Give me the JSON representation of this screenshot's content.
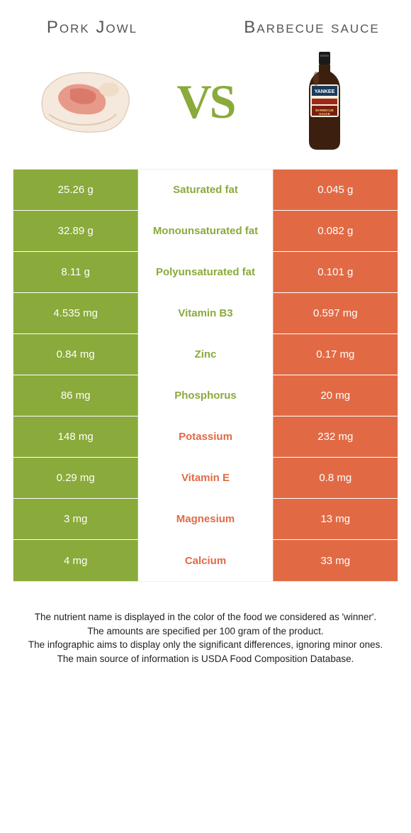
{
  "header": {
    "left_title": "Pork Jowl",
    "right_title": "Barbecue sauce",
    "vs_label": "VS"
  },
  "colors": {
    "left_color": "#8aaa3b",
    "right_color": "#e16a45",
    "left_text": "#8aaa3b",
    "right_text": "#e16a45",
    "body_bg": "#ffffff"
  },
  "rows": [
    {
      "left": "25.26 g",
      "label": "Saturated fat",
      "right": "0.045 g",
      "winner": "left"
    },
    {
      "left": "32.89 g",
      "label": "Monounsaturated fat",
      "right": "0.082 g",
      "winner": "left"
    },
    {
      "left": "8.11 g",
      "label": "Polyunsaturated fat",
      "right": "0.101 g",
      "winner": "left"
    },
    {
      "left": "4.535 mg",
      "label": "Vitamin B3",
      "right": "0.597 mg",
      "winner": "left"
    },
    {
      "left": "0.84 mg",
      "label": "Zinc",
      "right": "0.17 mg",
      "winner": "left"
    },
    {
      "left": "86 mg",
      "label": "Phosphorus",
      "right": "20 mg",
      "winner": "left"
    },
    {
      "left": "148 mg",
      "label": "Potassium",
      "right": "232 mg",
      "winner": "right"
    },
    {
      "left": "0.29 mg",
      "label": "Vitamin E",
      "right": "0.8 mg",
      "winner": "right"
    },
    {
      "left": "3 mg",
      "label": "Magnesium",
      "right": "13 mg",
      "winner": "right"
    },
    {
      "left": "4 mg",
      "label": "Calcium",
      "right": "33 mg",
      "winner": "right"
    }
  ],
  "footer": {
    "line1": "The nutrient name is displayed in the color of the food we considered as 'winner'.",
    "line2": "The amounts are specified per 100 gram of the product.",
    "line3": "The infographic aims to display only the significant differences, ignoring minor ones.",
    "line4": "The main source of information is USDA Food Composition Database."
  },
  "images": {
    "left_alt": "pork-jowl",
    "right_alt": "bbq-sauce-bottle"
  }
}
